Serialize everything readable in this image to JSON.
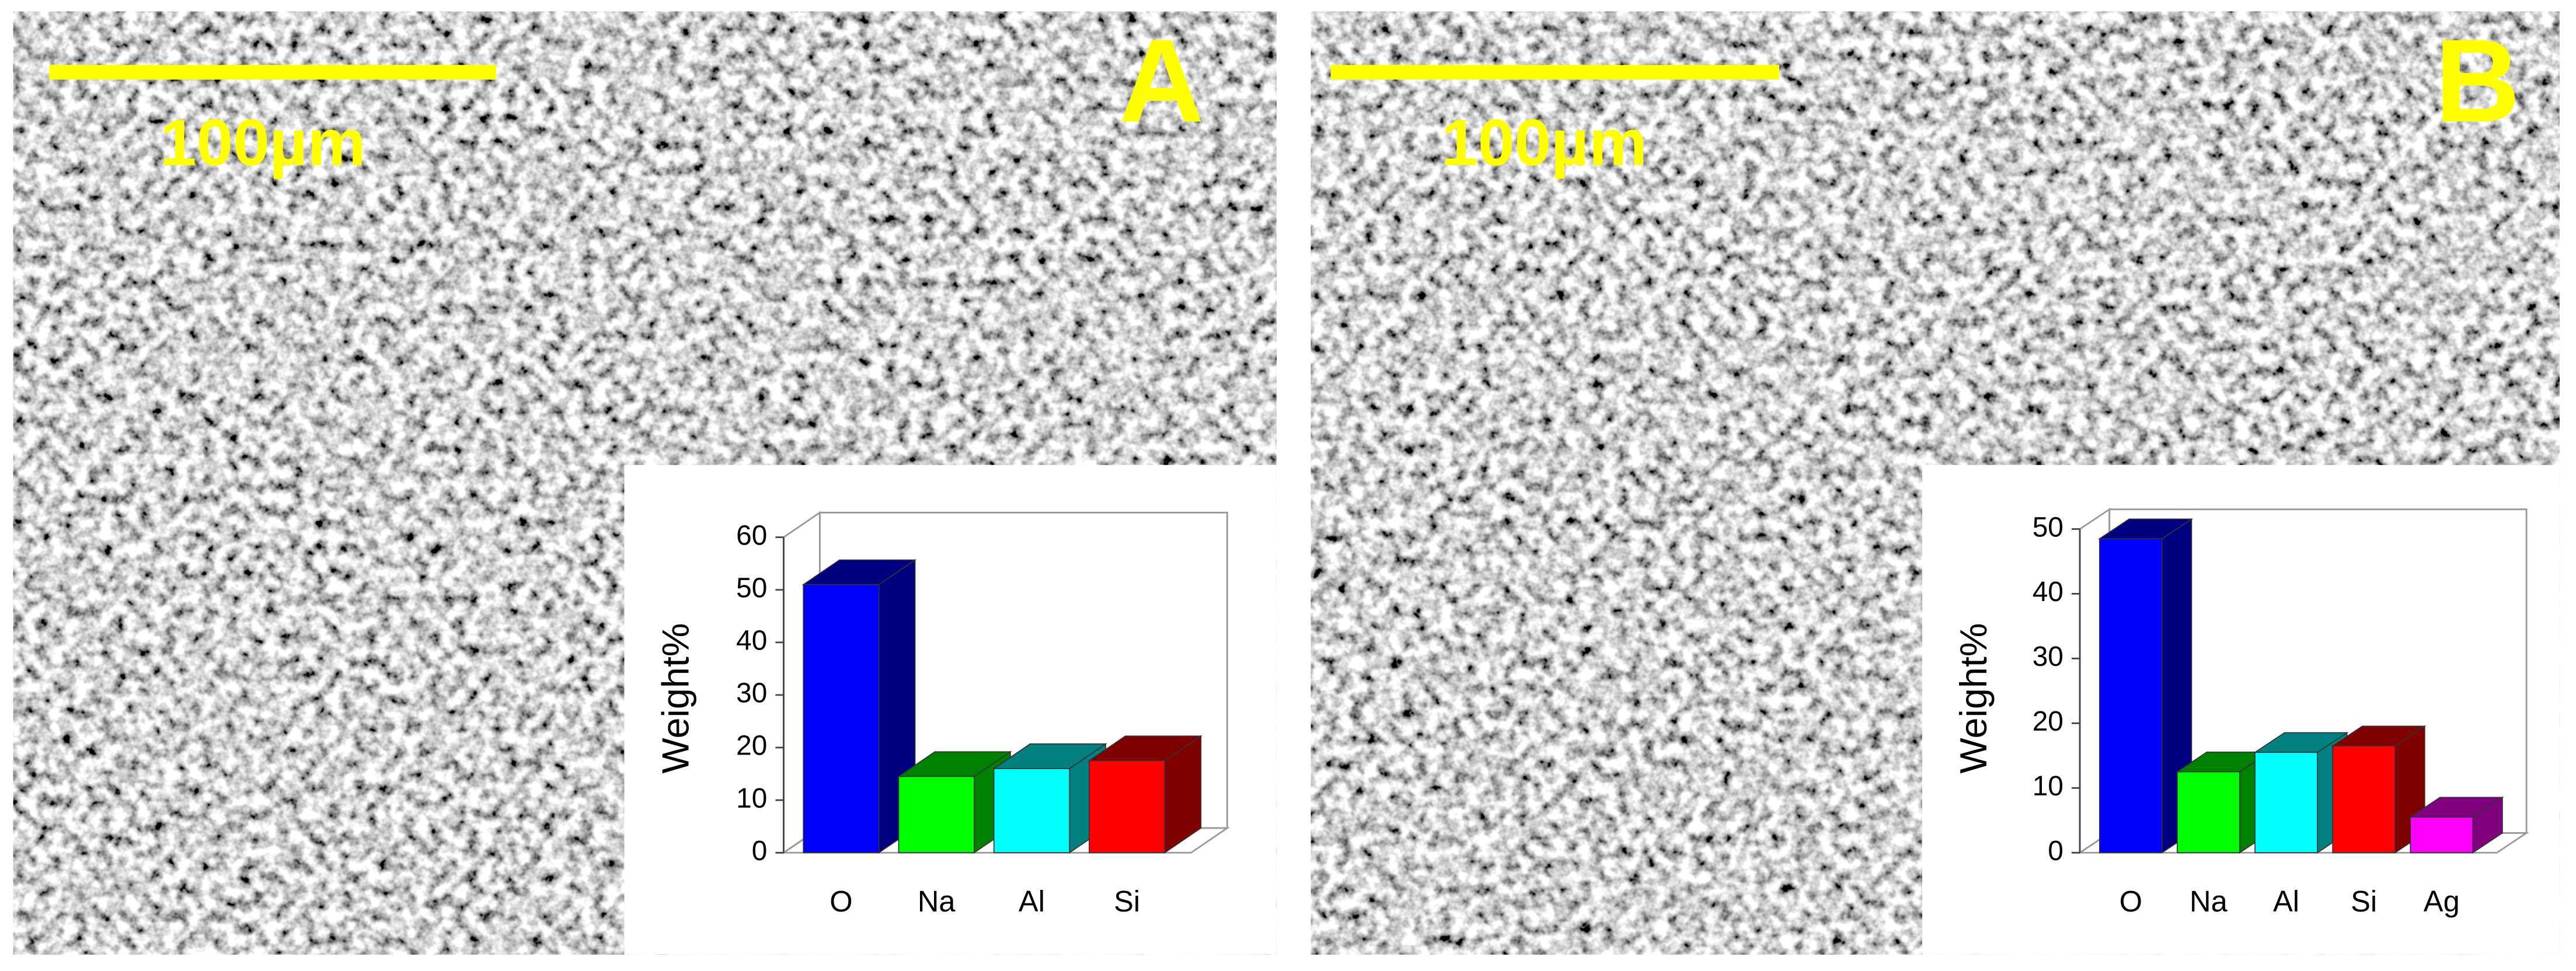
{
  "chart_data": [
    {
      "type": "bar",
      "panel_label": "A",
      "scale_label": "100µm",
      "ylabel": "Weight%",
      "categories": [
        "O",
        "Na",
        "Al",
        "Si"
      ],
      "values": [
        51,
        14.5,
        16,
        17.5
      ],
      "colors": [
        "#0000ff",
        "#00ff00",
        "#00ffff",
        "#ff0000"
      ],
      "ylim": [
        0,
        60
      ],
      "yticks": [
        0,
        10,
        20,
        30,
        40,
        50,
        60
      ]
    },
    {
      "type": "bar",
      "panel_label": "B",
      "scale_label": "100µm",
      "ylabel": "Weight%",
      "categories": [
        "O",
        "Na",
        "Al",
        "Si",
        "Ag"
      ],
      "values": [
        48.5,
        12.5,
        15.5,
        16.5,
        5.5
      ],
      "colors": [
        "#0000ff",
        "#00ff00",
        "#00ffff",
        "#ff0000",
        "#ff00ff"
      ],
      "ylim": [
        0,
        50
      ],
      "yticks": [
        0,
        10,
        20,
        30,
        40,
        50
      ]
    }
  ]
}
